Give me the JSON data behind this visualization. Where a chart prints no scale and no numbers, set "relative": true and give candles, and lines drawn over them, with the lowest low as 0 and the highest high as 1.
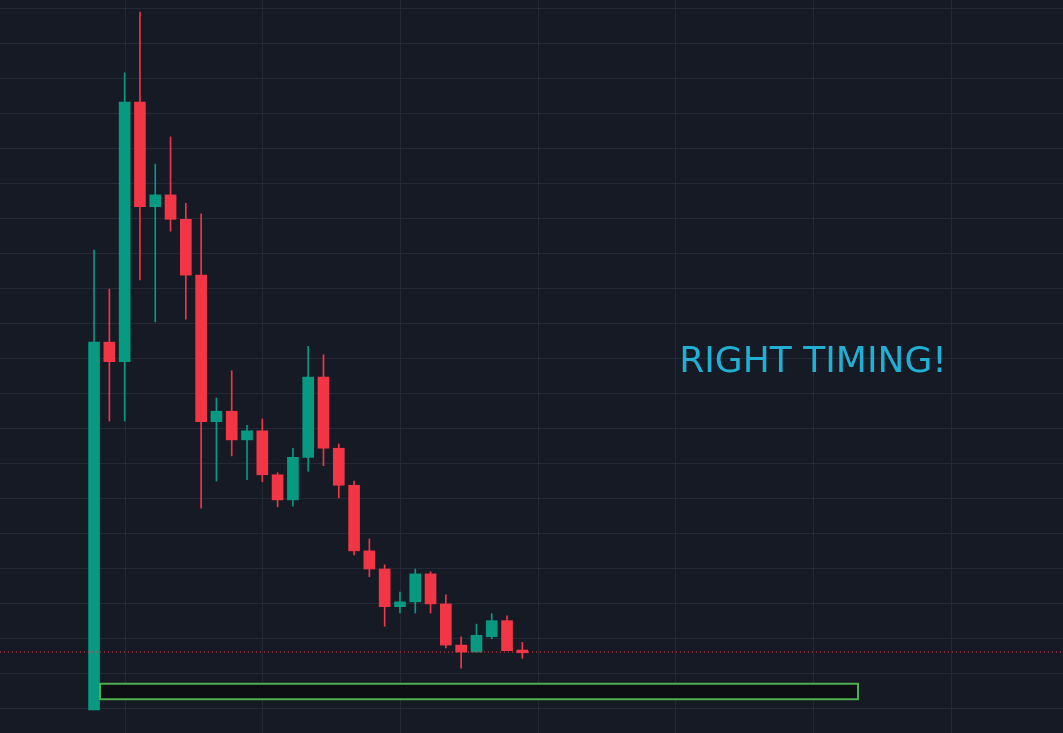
{
  "chart_data": {
    "type": "candlestick",
    "relative": true,
    "grid": true,
    "categories": [
      null,
      null,
      null,
      null,
      null,
      null,
      null,
      null,
      null,
      null,
      null,
      null,
      null,
      null,
      null,
      null,
      null,
      null,
      null,
      null,
      null,
      null,
      null,
      null,
      null,
      null,
      null,
      null,
      null
    ],
    "ohlc": [
      [
        0,
        0.659,
        0,
        0.527
      ],
      [
        0.527,
        0.603,
        0.414,
        0.499
      ],
      [
        0.499,
        0.913,
        0.414,
        0.871
      ],
      [
        0.871,
        1,
        0.616,
        0.721
      ],
      [
        0.721,
        0.782,
        0.556,
        0.738
      ],
      [
        0.738,
        0.821,
        0.686,
        0.703
      ],
      [
        0.703,
        0.726,
        0.56,
        0.623
      ],
      [
        0.623,
        0.711,
        0.289,
        0.413
      ],
      [
        0.413,
        0.447,
        0.328,
        0.428
      ],
      [
        0.428,
        0.486,
        0.364,
        0.387
      ],
      [
        0.387,
        0.408,
        0.33,
        0.4
      ],
      [
        0.4,
        0.417,
        0.327,
        0.337
      ],
      [
        0.337,
        0.34,
        0.291,
        0.301
      ],
      [
        0.301,
        0.375,
        0.292,
        0.362
      ],
      [
        0.362,
        0.521,
        0.342,
        0.477
      ],
      [
        0.477,
        0.509,
        0.35,
        0.375
      ],
      [
        0.375,
        0.381,
        0.304,
        0.322
      ],
      [
        0.322,
        0.328,
        0.222,
        0.228
      ],
      [
        0.228,
        0.245,
        0.191,
        0.202
      ],
      [
        0.202,
        0.208,
        0.12,
        0.148
      ],
      [
        0.148,
        0.169,
        0.139,
        0.155
      ],
      [
        0.155,
        0.202,
        0.139,
        0.195
      ],
      [
        0.195,
        0.198,
        0.139,
        0.152
      ],
      [
        0.152,
        0.165,
        0.089,
        0.093
      ],
      [
        0.093,
        0.105,
        0.06,
        0.083
      ],
      [
        0.083,
        0.123,
        0.083,
        0.107
      ],
      [
        0.105,
        0.138,
        0.102,
        0.128
      ],
      [
        0.128,
        0.135,
        0.085,
        0.085
      ],
      [
        0.086,
        0.097,
        0.074,
        0.082
      ]
    ],
    "colors": [
      "#089981",
      "#f23645",
      "#089981",
      "#f23645",
      "#089981",
      "#f23645",
      "#f23645",
      "#f23645",
      "#089981",
      "#f23645",
      "#089981",
      "#f23645",
      "#f23645",
      "#089981",
      "#089981",
      "#f23645",
      "#f23645",
      "#f23645",
      "#f23645",
      "#f23645",
      "#089981",
      "#089981",
      "#f23645",
      "#f23645",
      "#f23645",
      "#089981",
      "#089981",
      "#f23645",
      "#f23645"
    ],
    "bands": [
      {
        "axis": "y",
        "from": 0.014,
        "to": 0.039,
        "color": "#0c0e13"
      }
    ],
    "ref_lines": [
      {
        "axis": "y",
        "value": 0.083,
        "color": "#f23645",
        "line_style": "dotted"
      }
    ],
    "annotations": [
      "RIGHT TIMING!"
    ]
  }
}
